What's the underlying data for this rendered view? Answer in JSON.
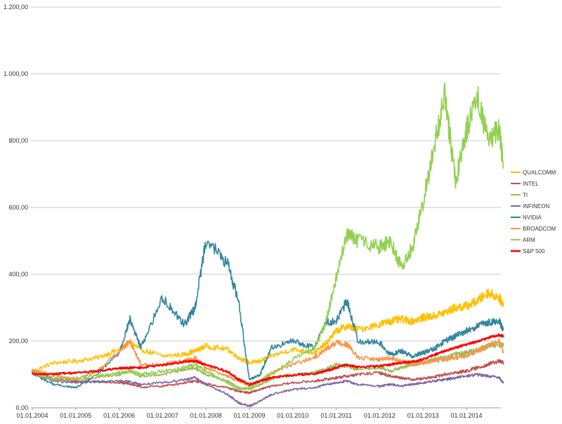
{
  "chart_data": {
    "type": "line",
    "title": "",
    "xlabel": "",
    "ylabel": "",
    "ylim": [
      0,
      1200
    ],
    "y_ticks": [
      "0,00",
      "200,00",
      "400,00",
      "600,00",
      "800,00",
      "1.000,00",
      "1.200,00"
    ],
    "x_ticks": [
      "01.01.2004",
      "01.01.2005",
      "01.01.2006",
      "01.01.2007",
      "01.01.2008",
      "01.01.2009",
      "01.01.2010",
      "01.01.2011",
      "01.01.2012",
      "01.01.2013",
      "01.01.2014"
    ],
    "x": [
      2004.0,
      2004.5,
      2005.0,
      2005.5,
      2006.0,
      2006.25,
      2006.5,
      2007.0,
      2007.5,
      2007.75,
      2008.0,
      2008.5,
      2008.75,
      2009.0,
      2009.25,
      2009.5,
      2010.0,
      2010.5,
      2010.75,
      2011.0,
      2011.25,
      2011.5,
      2012.0,
      2012.25,
      2012.5,
      2012.75,
      2013.0,
      2013.25,
      2013.5,
      2013.75,
      2014.0,
      2014.25,
      2014.5,
      2014.75,
      2014.85
    ],
    "grid": true,
    "legend": "right",
    "series": [
      {
        "name": "QUALCOMM",
        "color": "#FFC000",
        "values": [
          110,
          135,
          140,
          150,
          175,
          195,
          175,
          155,
          160,
          170,
          185,
          175,
          150,
          135,
          140,
          155,
          175,
          165,
          190,
          230,
          245,
          235,
          250,
          260,
          265,
          260,
          270,
          275,
          285,
          300,
          305,
          320,
          345,
          330,
          310
        ]
      },
      {
        "name": "INTEL",
        "color": "#C0504D",
        "values": [
          108,
          85,
          80,
          78,
          75,
          72,
          62,
          65,
          75,
          80,
          72,
          60,
          50,
          45,
          55,
          65,
          75,
          80,
          85,
          90,
          95,
          100,
          105,
          95,
          90,
          85,
          88,
          92,
          100,
          105,
          110,
          120,
          130,
          140,
          135
        ]
      },
      {
        "name": "TI",
        "color": "#9BBB59",
        "values": [
          110,
          90,
          85,
          92,
          100,
          110,
          95,
          100,
          115,
          120,
          100,
          80,
          60,
          55,
          70,
          85,
          100,
          105,
          115,
          130,
          125,
          115,
          120,
          110,
          120,
          130,
          135,
          145,
          150,
          160,
          165,
          175,
          185,
          190,
          185
        ]
      },
      {
        "name": "INFINEON",
        "color": "#8064A2",
        "values": [
          105,
          80,
          75,
          78,
          80,
          78,
          70,
          75,
          85,
          90,
          70,
          40,
          15,
          5,
          20,
          40,
          55,
          60,
          70,
          75,
          80,
          70,
          65,
          70,
          65,
          70,
          75,
          80,
          85,
          90,
          95,
          100,
          95,
          90,
          75
        ]
      },
      {
        "name": "NVIDIA",
        "color": "#31859C",
        "values": [
          102,
          70,
          60,
          100,
          165,
          265,
          180,
          330,
          250,
          300,
          505,
          430,
          320,
          85,
          100,
          180,
          200,
          180,
          255,
          260,
          320,
          200,
          195,
          160,
          170,
          155,
          165,
          175,
          200,
          215,
          230,
          245,
          255,
          260,
          235
        ]
      },
      {
        "name": "BROADCOM",
        "color": "#F79646",
        "values": [
          112,
          100,
          85,
          110,
          170,
          200,
          130,
          130,
          140,
          150,
          120,
          95,
          80,
          65,
          80,
          105,
          130,
          150,
          175,
          195,
          190,
          150,
          145,
          150,
          140,
          130,
          135,
          140,
          145,
          150,
          155,
          170,
          185,
          200,
          165
        ]
      },
      {
        "name": "ARM",
        "color": "#92D050",
        "values": [
          100,
          85,
          90,
          95,
          105,
          110,
          100,
          110,
          120,
          130,
          110,
          75,
          55,
          60,
          80,
          100,
          145,
          180,
          250,
          390,
          520,
          500,
          480,
          500,
          420,
          480,
          610,
          780,
          930,
          680,
          830,
          945,
          790,
          840,
          720
        ]
      },
      {
        "name": "S&P 500",
        "color": "#FF0000",
        "values": [
          100,
          102,
          105,
          110,
          118,
          120,
          120,
          128,
          138,
          140,
          130,
          108,
          85,
          70,
          80,
          90,
          98,
          102,
          110,
          120,
          130,
          122,
          125,
          130,
          135,
          138,
          145,
          158,
          170,
          180,
          190,
          198,
          210,
          218,
          215
        ]
      }
    ]
  }
}
